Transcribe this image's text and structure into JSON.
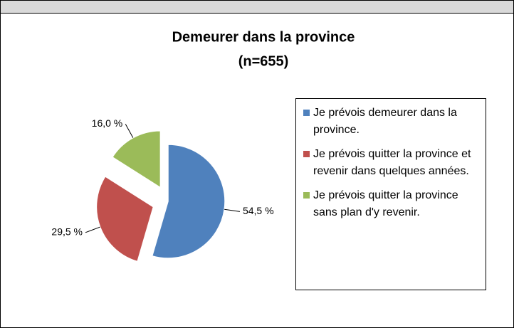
{
  "chart_data": {
    "type": "pie",
    "title": "Demeurer dans la province",
    "subtitle": "(n=655)",
    "categories": [
      "Je prévois demeurer dans la province.",
      "Je prévois quitter la province et revenir dans quelques années.",
      "Je prévois quitter la province sans plan d'y revenir."
    ],
    "values": [
      54.5,
      29.5,
      16.0
    ],
    "value_labels": [
      "54,5 %",
      "29,5 %",
      "16,0 %"
    ],
    "colors": [
      "#4f81bd",
      "#c0504d",
      "#9bbb59"
    ],
    "legend": "right"
  }
}
